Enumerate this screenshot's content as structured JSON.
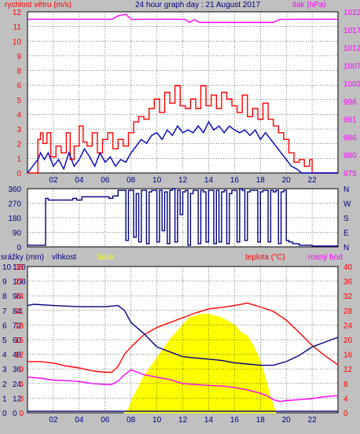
{
  "colors": {
    "background": "#c0c0c0",
    "plot_bg": "#ffffff",
    "grid": "#000000",
    "axis_text": "#000080",
    "wind_gust": "#ff0000",
    "wind_avg": "#0000c0",
    "pressure": "#ff00ff",
    "direction": "#000080",
    "humidity": "#000080",
    "temperature": "#ff0000",
    "dewpoint": "#ff00ff",
    "solar": "#ffff00",
    "rain": "#000080"
  },
  "chart_data": [
    {
      "type": "line",
      "id": "wind",
      "title": "24 hour graph day : 21 August 2017",
      "ylabel": "rychlost větru (m/s)",
      "ylabel_right": "tlak (hPa)",
      "ylim": [
        0,
        12
      ],
      "ylim_right": [
        975,
        1022
      ],
      "y_ticks": [
        "0",
        "1",
        "2",
        "3",
        "4",
        "5",
        "6",
        "8",
        "9",
        "10",
        "11",
        "12"
      ],
      "y_ticks_right": [
        "975",
        "980",
        "986",
        "991",
        "996",
        "1002",
        "1007",
        "1012",
        "1017",
        "1022"
      ],
      "x_ticks": [
        "02",
        "04",
        "06",
        "08",
        "10",
        "12",
        "14",
        "16",
        "18",
        "20",
        "22"
      ],
      "xlim": [
        0,
        24
      ],
      "grid": true,
      "series": [
        {
          "name": "gust",
          "axis": "left",
          "x": [
            0,
            0.8,
            1.0,
            1.2,
            1.5,
            1.8,
            2.2,
            2.6,
            3.0,
            3.3,
            3.6,
            4.0,
            4.3,
            4.6,
            5.0,
            5.4,
            5.8,
            6.2,
            6.6,
            7.0,
            7.4,
            7.8,
            8.2,
            8.6,
            9.0,
            9.4,
            9.8,
            10.2,
            10.6,
            11.0,
            11.4,
            11.8,
            12.2,
            12.6,
            13.0,
            13.4,
            13.8,
            14.2,
            14.6,
            15.0,
            15.4,
            15.8,
            16.2,
            16.6,
            17.0,
            17.4,
            17.8,
            18.2,
            18.6,
            19.0,
            19.4,
            19.8,
            20.2,
            20.6,
            21.0,
            21.4,
            21.8,
            22.0,
            24
          ],
          "values": [
            0,
            2.5,
            3,
            2.2,
            3,
            1.2,
            2,
            1.5,
            3,
            1,
            2,
            3.5,
            2.3,
            2,
            3,
            1.5,
            2.5,
            3,
            1.8,
            2.5,
            2,
            3,
            3.8,
            4.2,
            4,
            4.8,
            5.5,
            4.5,
            6,
            5.2,
            6.5,
            5,
            4.8,
            5.5,
            4.8,
            6.5,
            5,
            5.8,
            4.8,
            6,
            5.5,
            5,
            4.5,
            5.8,
            4.2,
            4.8,
            4,
            5.2,
            4,
            3.5,
            3,
            2.5,
            1.5,
            0.8,
            1,
            0.5,
            1,
            0,
            0
          ]
        },
        {
          "name": "average",
          "axis": "left",
          "x": [
            0,
            0.8,
            1.0,
            1.3,
            1.6,
            2.0,
            2.4,
            2.8,
            3.2,
            3.6,
            4.0,
            4.4,
            4.8,
            5.2,
            5.6,
            6.0,
            6.4,
            6.8,
            7.2,
            7.6,
            8.0,
            8.4,
            8.8,
            9.2,
            9.6,
            10.0,
            10.4,
            10.8,
            11.2,
            11.6,
            12.0,
            12.4,
            12.8,
            13.2,
            13.6,
            14.0,
            14.4,
            14.8,
            15.2,
            15.6,
            16.0,
            16.4,
            16.8,
            17.2,
            17.6,
            18.0,
            18.4,
            18.8,
            19.2,
            19.6,
            20.0,
            20.4,
            20.8,
            21.2,
            24
          ],
          "values": [
            0,
            1,
            1.5,
            1,
            1.5,
            0.5,
            1,
            0.3,
            1.5,
            0.5,
            1,
            1.8,
            1.2,
            0.5,
            1.5,
            0.8,
            1.2,
            0.5,
            1,
            0.8,
            1.5,
            2,
            2.5,
            2.2,
            2.8,
            3,
            2.5,
            3.2,
            2.8,
            3.5,
            3,
            3.2,
            3,
            3.5,
            3,
            3.8,
            3.2,
            3.5,
            3,
            3.5,
            3.2,
            3,
            3.2,
            2.8,
            3.2,
            2.5,
            3,
            2.5,
            2,
            1.5,
            1,
            0.5,
            0.3,
            0,
            0
          ]
        },
        {
          "name": "pressure",
          "axis": "right",
          "x": [
            0,
            6.5,
            7.0,
            7.6,
            8.0,
            12.2,
            12.5,
            12.9,
            13.3,
            14.0,
            15.0,
            16.5,
            17.0,
            19.0,
            19.5,
            22.5,
            24
          ],
          "values": [
            1019.8,
            1019.8,
            1020.8,
            1021.3,
            1019.8,
            1019.8,
            1018.9,
            1019.7,
            1018.9,
            1018.9,
            1018.9,
            1018.9,
            1018.9,
            1018.9,
            1019.8,
            1019.8,
            1019.8
          ]
        }
      ]
    },
    {
      "type": "line",
      "id": "direction",
      "y_ticks": [
        "0",
        "90",
        "180",
        "270",
        "360"
      ],
      "y_ticks_right": [
        "N",
        "E",
        "S",
        "W",
        "N"
      ],
      "ylim": [
        0,
        360
      ],
      "xlim": [
        0,
        24
      ],
      "grid": true,
      "series": [
        {
          "name": "direction",
          "x": [
            0,
            1.2,
            1.4,
            1.6,
            3.5,
            3.8,
            4.2,
            6.3,
            6.6,
            7.0,
            7.3,
            7.6,
            7.8,
            8.0,
            8.2,
            8.4,
            8.6,
            8.8,
            9.0,
            9.2,
            9.4,
            9.6,
            9.8,
            10.0,
            10.2,
            10.4,
            10.6,
            10.8,
            11.0,
            11.2,
            11.4,
            11.6,
            11.8,
            12.0,
            12.2,
            12.4,
            12.6,
            12.8,
            13.0,
            13.2,
            13.4,
            13.6,
            13.8,
            14.0,
            14.2,
            14.4,
            14.6,
            14.8,
            15.0,
            15.2,
            15.4,
            15.6,
            15.8,
            16.0,
            16.2,
            16.4,
            16.6,
            16.8,
            17.0,
            17.2,
            17.4,
            17.6,
            17.8,
            18.0,
            18.2,
            18.4,
            18.6,
            18.8,
            19.0,
            19.2,
            19.4,
            19.6,
            19.8,
            20.0,
            20.2,
            20.5,
            21.0,
            22.0,
            24
          ],
          "values": [
            10,
            10,
            300,
            290,
            300,
            290,
            310,
            300,
            315,
            350,
            350,
            40,
            350,
            350,
            60,
            330,
            30,
            350,
            350,
            20,
            340,
            350,
            350,
            30,
            350,
            100,
            340,
            20,
            350,
            360,
            30,
            350,
            200,
            340,
            350,
            10,
            330,
            350,
            350,
            20,
            350,
            340,
            30,
            350,
            350,
            20,
            350,
            30,
            340,
            350,
            20,
            330,
            350,
            350,
            30,
            360,
            350,
            40,
            340,
            350,
            350,
            350,
            30,
            340,
            350,
            350,
            30,
            350,
            340,
            350,
            20,
            340,
            350,
            40,
            30,
            20,
            10,
            5,
            5
          ]
        }
      ]
    },
    {
      "type": "line",
      "id": "weather",
      "legend": [
        "srážky (mm)",
        "vlhkost",
        "Solar",
        "teplota (°C)",
        "rosný bod"
      ],
      "y_ticks_rain": [
        "0",
        "1",
        "2",
        "3",
        "4",
        "5",
        "6",
        "7",
        "8",
        "9",
        "10"
      ],
      "y_ticks_humidity": [
        "0",
        "12",
        "24",
        "36",
        "48",
        "60",
        "72",
        "84",
        "96",
        "108",
        "120"
      ],
      "y_ticks_temp_left": [
        "0",
        "3",
        "6",
        "9",
        "12",
        "15",
        "18",
        "21",
        "24",
        "27",
        "30"
      ],
      "y_ticks_right": [
        "0",
        "4",
        "8",
        "12",
        "16",
        "20",
        "24",
        "28",
        "32",
        "36",
        "40"
      ],
      "x_ticks": [
        "02",
        "04",
        "06",
        "08",
        "10",
        "12",
        "14",
        "16",
        "18",
        "20",
        "22"
      ],
      "xlim": [
        0,
        24
      ],
      "grid": true,
      "series": [
        {
          "name": "vlhkost",
          "axis": "humidity",
          "x": [
            0,
            0.5,
            2,
            4,
            6,
            7,
            7.5,
            8,
            9,
            10,
            11,
            12,
            13,
            14,
            15,
            16,
            17,
            18,
            19,
            20,
            21,
            22,
            23,
            24
          ],
          "values": [
            88,
            89,
            88,
            87,
            87,
            88,
            84,
            74,
            65,
            54,
            50,
            46,
            45,
            44,
            43,
            41,
            40,
            39,
            39,
            42,
            47,
            54,
            58,
            62
          ]
        },
        {
          "name": "teplota",
          "axis": "temp",
          "x": [
            0,
            1,
            2,
            3,
            4,
            5,
            6,
            6.5,
            7,
            7.5,
            8,
            9,
            10,
            11,
            12,
            13,
            14,
            15,
            16,
            17,
            18,
            19,
            20,
            21,
            22,
            23,
            24
          ],
          "values": [
            10.5,
            10.5,
            10.2,
            9.6,
            9.2,
            8.6,
            8.3,
            8.3,
            9.5,
            12,
            13.5,
            16,
            17.5,
            18.5,
            19.5,
            20.5,
            21.3,
            21.6,
            22,
            22.5,
            21.7,
            20.8,
            19,
            16.5,
            13.8,
            11.7,
            9.8
          ]
        },
        {
          "name": "rosný bod",
          "axis": "temp",
          "x": [
            0,
            1,
            2,
            3,
            4,
            5,
            6,
            6.5,
            7,
            7.5,
            8,
            9,
            10,
            11,
            12,
            13,
            14,
            15,
            16,
            17,
            18,
            18.5,
            19,
            19.5,
            20,
            21,
            22,
            23,
            24
          ],
          "values": [
            7.3,
            7.1,
            6.7,
            6.6,
            6.4,
            6,
            5.8,
            5.8,
            6.5,
            7.8,
            8.8,
            7.8,
            7.3,
            6.8,
            6,
            5.8,
            5.6,
            5.5,
            5.2,
            4.7,
            4,
            3.5,
            2.7,
            2.3,
            2.5,
            2.7,
            2.9,
            3.3,
            3.5
          ]
        },
        {
          "name": "Solar",
          "axis": "right",
          "x": [
            7.5,
            7.8,
            8,
            9,
            10,
            11,
            11.5,
            12,
            12.5,
            13,
            13.5,
            14,
            14.5,
            15,
            15.5,
            16,
            16.5,
            17,
            17.5,
            18,
            18.5,
            18.8,
            19,
            19.2
          ],
          "values": [
            0,
            1,
            3,
            10,
            15,
            20,
            22,
            24,
            26,
            26.5,
            27,
            27,
            26.5,
            26,
            25,
            24,
            22,
            21,
            18,
            14,
            8,
            4,
            2,
            0
          ]
        },
        {
          "name": "srážky",
          "axis": "rain",
          "x": [
            0,
            24
          ],
          "values": [
            0.1,
            0.1
          ]
        }
      ]
    }
  ]
}
